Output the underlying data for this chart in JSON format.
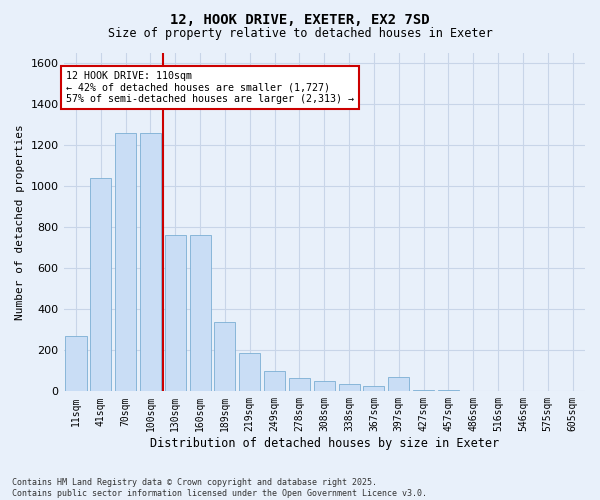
{
  "title1": "12, HOOK DRIVE, EXETER, EX2 7SD",
  "title2": "Size of property relative to detached houses in Exeter",
  "xlabel": "Distribution of detached houses by size in Exeter",
  "ylabel": "Number of detached properties",
  "bar_labels": [
    "11sqm",
    "41sqm",
    "70sqm",
    "100sqm",
    "130sqm",
    "160sqm",
    "189sqm",
    "219sqm",
    "249sqm",
    "278sqm",
    "308sqm",
    "338sqm",
    "367sqm",
    "397sqm",
    "427sqm",
    "457sqm",
    "486sqm",
    "516sqm",
    "546sqm",
    "575sqm",
    "605sqm"
  ],
  "bar_values": [
    270,
    1040,
    1260,
    1260,
    760,
    760,
    340,
    185,
    100,
    65,
    50,
    35,
    25,
    70,
    5,
    5,
    0,
    0,
    0,
    0,
    0
  ],
  "bar_color": "#c9ddf5",
  "bar_edge_color": "#7bafd4",
  "vline_x": 3.5,
  "vline_color": "#cc0000",
  "ylim": [
    0,
    1650
  ],
  "yticks": [
    0,
    200,
    400,
    600,
    800,
    1000,
    1200,
    1400,
    1600
  ],
  "annotation_text": "12 HOOK DRIVE: 110sqm\n← 42% of detached houses are smaller (1,727)\n57% of semi-detached houses are larger (2,313) →",
  "annotation_box_color": "#ffffff",
  "annotation_box_edge": "#cc0000",
  "background_color": "#e8f0fa",
  "grid_color": "#c8d5e8",
  "footer": "Contains HM Land Registry data © Crown copyright and database right 2025.\nContains public sector information licensed under the Open Government Licence v3.0."
}
